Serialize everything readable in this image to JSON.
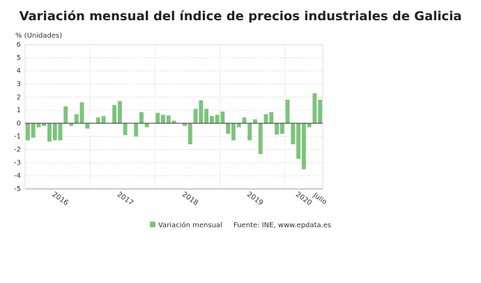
{
  "chart_data": {
    "type": "bar",
    "title": "Variación mensual del índice de precios industriales de Galicia",
    "y_label": "% (Unidades)",
    "source": "Fuente: INE, www.epdata.es",
    "categories": [
      null,
      null,
      null,
      null,
      null,
      null,
      "2016",
      null,
      null,
      null,
      null,
      null,
      null,
      null,
      null,
      null,
      null,
      null,
      "2017",
      null,
      null,
      null,
      null,
      null,
      null,
      null,
      null,
      null,
      null,
      null,
      "2018",
      null,
      null,
      null,
      null,
      null,
      null,
      null,
      null,
      null,
      null,
      null,
      "2019",
      null,
      null,
      null,
      null,
      null,
      null,
      null,
      null,
      "2020",
      null,
      null,
      "Julio"
    ],
    "series": [
      {
        "name": "Variación mensual",
        "color": "#7cc47c",
        "values": [
          -1.3,
          -1.1,
          -0.3,
          -0.2,
          -1.4,
          -1.3,
          -1.3,
          1.3,
          -0.2,
          0.7,
          1.6,
          -0.4,
          0.0,
          0.45,
          0.55,
          0.0,
          1.4,
          1.7,
          -0.9,
          0.0,
          -1.0,
          0.85,
          -0.3,
          0.0,
          0.8,
          0.65,
          0.6,
          0.2,
          0.0,
          -0.2,
          -1.6,
          1.1,
          1.75,
          1.1,
          0.55,
          0.65,
          0.9,
          -0.8,
          -1.3,
          -0.3,
          0.45,
          -1.3,
          0.3,
          -2.35,
          0.7,
          0.85,
          -0.85,
          -0.8,
          1.8,
          -1.6,
          -2.7,
          -3.5,
          -0.3,
          2.3,
          1.8
        ]
      }
    ],
    "ylim": [
      -5,
      6
    ],
    "yticks": [
      -5,
      -4,
      -3,
      -2,
      -1,
      0,
      1,
      2,
      3,
      4,
      5,
      6
    ],
    "grid": true
  }
}
